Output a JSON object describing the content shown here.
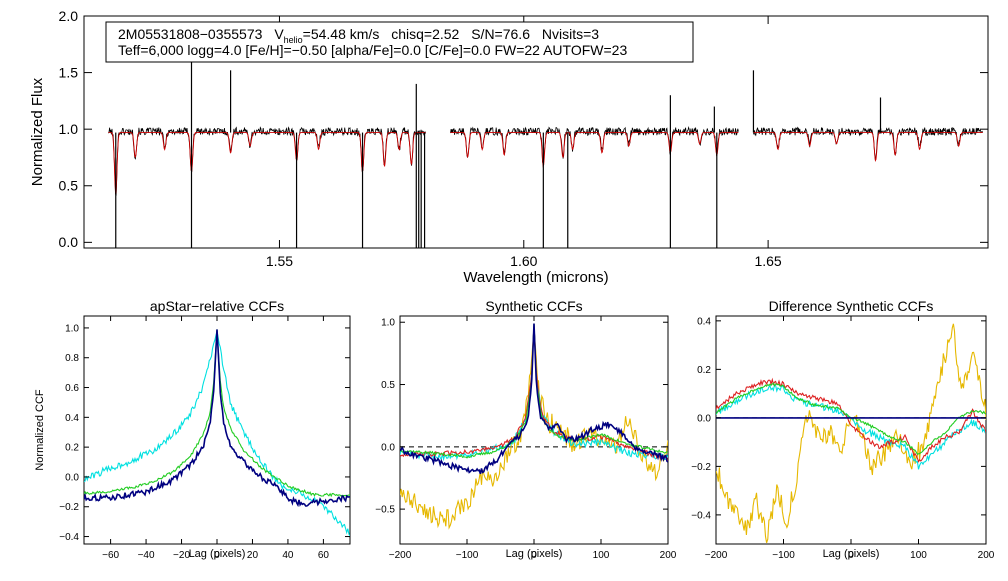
{
  "colors": {
    "observed": "#000000",
    "model": "#cc0000",
    "navy": "#000080",
    "green": "#22cc22",
    "cyan": "#00e0e0",
    "yellow": "#e6b800",
    "red": "#dd2222",
    "axis": "#000000"
  },
  "spectrum": {
    "star_id": "2M05531808−0355573",
    "vhelio_prefix": "V",
    "vhelio_sub": "helio",
    "vhelio_value": "=54.48 km/s",
    "chisq": "chisq=2.52",
    "snr": "S/N=76.6",
    "nvisits": "Nvisits=3",
    "params_line": "Teff=6,000 logg=4.0 [Fe/H]=−0.50 [alpha/Fe]=0.0 [C/Fe]=0.0 FW=22 AUTOFW=23"
  },
  "chart_data": [
    {
      "id": "spectrum",
      "type": "line",
      "title": "",
      "xlabel": "Wavelength (microns)",
      "ylabel": "Normalized Flux",
      "xlim": [
        1.51,
        1.695
      ],
      "ylim": [
        -0.05,
        2.0
      ],
      "xticks": [
        1.55,
        1.6,
        1.65
      ],
      "xtick_labels": [
        "1.55",
        "1.60",
        "1.65"
      ],
      "yticks": [
        0.0,
        0.5,
        1.0,
        1.5,
        2.0
      ],
      "ytick_labels": [
        "0.0",
        "0.5",
        "1.0",
        "1.5",
        "2.0"
      ],
      "chips": [
        [
          1.515,
          1.58
        ],
        [
          1.585,
          1.644
        ],
        [
          1.647,
          1.694
        ]
      ],
      "continuum": 0.97,
      "lines": [
        [
          1.5165,
          0.55
        ],
        [
          1.5205,
          0.22
        ],
        [
          1.5265,
          0.15
        ],
        [
          1.532,
          0.35
        ],
        [
          1.54,
          0.18
        ],
        [
          1.544,
          0.12
        ],
        [
          1.5535,
          0.25
        ],
        [
          1.558,
          0.15
        ],
        [
          1.567,
          0.35
        ],
        [
          1.5715,
          0.3
        ],
        [
          1.5745,
          0.15
        ],
        [
          1.577,
          0.28
        ],
        [
          1.5885,
          0.22
        ],
        [
          1.5915,
          0.15
        ],
        [
          1.596,
          0.2
        ],
        [
          1.604,
          0.3
        ],
        [
          1.608,
          0.22
        ],
        [
          1.61,
          0.15
        ],
        [
          1.616,
          0.18
        ],
        [
          1.6215,
          0.12
        ],
        [
          1.63,
          0.18
        ],
        [
          1.636,
          0.1
        ],
        [
          1.6395,
          0.2
        ],
        [
          1.652,
          0.15
        ],
        [
          1.6585,
          0.12
        ],
        [
          1.664,
          0.1
        ],
        [
          1.672,
          0.25
        ],
        [
          1.676,
          0.2
        ],
        [
          1.681,
          0.15
        ],
        [
          1.689,
          0.12
        ]
      ],
      "spikes_down": [
        1.5165,
        1.532,
        1.5535,
        1.567,
        1.578,
        1.5785,
        1.579,
        1.5797,
        1.604,
        1.609,
        1.63,
        1.6395
      ],
      "spikes_up": [
        [
          1.532,
          1.75
        ],
        [
          1.54,
          1.52
        ],
        [
          1.578,
          1.4
        ],
        [
          1.63,
          1.3
        ],
        [
          1.639,
          1.2
        ],
        [
          1.647,
          1.52
        ],
        [
          1.673,
          1.28
        ]
      ],
      "series": [
        {
          "name": "observed",
          "color": "observed"
        },
        {
          "name": "model",
          "color": "model"
        }
      ]
    },
    {
      "id": "ccf1",
      "type": "line",
      "title": "apStar−relative CCFs",
      "xlabel": "Lag (pixels)",
      "ylabel": "Normalized CCF",
      "xlim": [
        -75,
        75
      ],
      "ylim": [
        -0.45,
        1.08
      ],
      "xticks": [
        -60,
        -40,
        -20,
        0,
        20,
        40,
        60
      ],
      "xtick_labels": [
        "−60",
        "−40",
        "−20",
        "0",
        "20",
        "40",
        "60"
      ],
      "yticks": [
        -0.4,
        -0.2,
        0.0,
        0.2,
        0.4,
        0.6,
        0.8,
        1.0
      ],
      "ytick_labels": [
        "−0.4",
        "−0.2",
        "0.0",
        "0.2",
        "0.4",
        "0.6",
        "0.8",
        "1.0"
      ],
      "series": [
        {
          "name": "navy",
          "color": "navy",
          "x": [
            -75,
            -60,
            -40,
            -25,
            -15,
            -8,
            -4,
            -2,
            0,
            2,
            4,
            8,
            15,
            25,
            35,
            42,
            50,
            60,
            75
          ],
          "y": [
            -0.14,
            -0.14,
            -0.1,
            -0.02,
            0.08,
            0.2,
            0.35,
            0.55,
            0.99,
            0.55,
            0.35,
            0.2,
            0.1,
            0.0,
            -0.08,
            -0.16,
            -0.18,
            -0.16,
            -0.14
          ]
        },
        {
          "name": "green",
          "color": "green",
          "x": [
            -75,
            -60,
            -40,
            -25,
            -15,
            -8,
            -4,
            -2,
            0,
            2,
            4,
            8,
            15,
            25,
            40,
            55,
            75
          ],
          "y": [
            -0.11,
            -0.1,
            -0.05,
            0.03,
            0.14,
            0.28,
            0.42,
            0.62,
            0.99,
            0.62,
            0.45,
            0.32,
            0.18,
            0.06,
            -0.06,
            -0.12,
            -0.12
          ]
        },
        {
          "name": "cyan",
          "color": "cyan",
          "x": [
            -75,
            -62,
            -50,
            -35,
            -25,
            -15,
            -8,
            -4,
            0,
            4,
            8,
            15,
            25,
            35,
            45,
            55,
            65,
            75
          ],
          "y": [
            -0.02,
            0.05,
            0.1,
            0.18,
            0.28,
            0.42,
            0.6,
            0.78,
            0.98,
            0.7,
            0.48,
            0.3,
            0.1,
            -0.05,
            -0.1,
            -0.16,
            -0.25,
            -0.38
          ]
        }
      ]
    },
    {
      "id": "ccf2",
      "type": "line",
      "title": "Synthetic CCFs",
      "xlabel": "Lag (pixels)",
      "ylabel": "",
      "xlim": [
        -200,
        200
      ],
      "ylim": [
        -0.78,
        1.05
      ],
      "xticks": [
        -200,
        -100,
        0,
        100,
        200
      ],
      "xtick_labels": [
        "−200",
        "−100",
        "0",
        "100",
        "200"
      ],
      "yticks": [
        -0.5,
        0.0,
        0.5,
        1.0
      ],
      "ytick_labels": [
        "−0.5",
        "0.0",
        "0.5",
        "1.0"
      ],
      "zero_line": true,
      "series": [
        {
          "name": "navy",
          "color": "navy",
          "x": [
            -200,
            -170,
            -140,
            -110,
            -80,
            -55,
            -35,
            -20,
            -10,
            -4,
            0,
            4,
            10,
            20,
            35,
            50,
            70,
            90,
            110,
            130,
            150,
            175,
            200
          ],
          "y": [
            -0.02,
            -0.08,
            -0.12,
            -0.18,
            -0.2,
            -0.1,
            0.02,
            0.1,
            0.2,
            0.45,
            0.99,
            0.45,
            0.25,
            0.15,
            0.18,
            0.05,
            0.08,
            0.15,
            0.18,
            0.12,
            0.0,
            -0.05,
            -0.1
          ]
        },
        {
          "name": "green",
          "color": "green",
          "x": [
            -200,
            -150,
            -100,
            -60,
            -30,
            -12,
            -4,
            0,
            4,
            12,
            30,
            60,
            100,
            140,
            200
          ],
          "y": [
            -0.03,
            -0.05,
            -0.08,
            -0.04,
            0.04,
            0.2,
            0.5,
            0.99,
            0.5,
            0.22,
            0.1,
            0.05,
            0.1,
            0.02,
            -0.05
          ]
        },
        {
          "name": "cyan",
          "color": "cyan",
          "x": [
            -200,
            -150,
            -100,
            -60,
            -30,
            -12,
            -4,
            0,
            4,
            12,
            30,
            60,
            100,
            140,
            200
          ],
          "y": [
            -0.05,
            -0.08,
            -0.06,
            -0.02,
            0.05,
            0.22,
            0.52,
            0.99,
            0.52,
            0.25,
            0.12,
            0.02,
            0.04,
            -0.05,
            -0.08
          ]
        },
        {
          "name": "red",
          "color": "red",
          "x": [
            -200,
            -150,
            -100,
            -60,
            -30,
            -12,
            -4,
            0,
            4,
            12,
            30,
            60,
            100,
            140,
            200
          ],
          "y": [
            -0.06,
            -0.06,
            -0.04,
            -0.01,
            0.06,
            0.24,
            0.54,
            0.99,
            0.54,
            0.26,
            0.12,
            0.05,
            0.08,
            0.0,
            -0.1
          ]
        },
        {
          "name": "yellow",
          "color": "yellow",
          "x": [
            -200,
            -180,
            -160,
            -140,
            -120,
            -100,
            -80,
            -60,
            -40,
            -20,
            -8,
            0,
            8,
            20,
            40,
            60,
            80,
            100,
            120,
            140,
            160,
            180,
            200
          ],
          "y": [
            -0.35,
            -0.45,
            -0.5,
            -0.6,
            -0.55,
            -0.45,
            -0.25,
            -0.3,
            -0.05,
            0.1,
            0.4,
            0.95,
            0.4,
            0.2,
            0.15,
            0.0,
            0.1,
            0.05,
            0.0,
            0.2,
            -0.05,
            -0.2,
            0.0
          ]
        }
      ]
    },
    {
      "id": "ccf3",
      "type": "line",
      "title": "Difference Synthetic CCFs",
      "xlabel": "Lag (pixels)",
      "ylabel": "",
      "xlim": [
        -200,
        200
      ],
      "ylim": [
        -0.52,
        0.42
      ],
      "xticks": [
        -200,
        -100,
        0,
        100,
        200
      ],
      "xtick_labels": [
        "−200",
        "−100",
        "0",
        "100",
        "200"
      ],
      "yticks": [
        -0.4,
        -0.2,
        0.0,
        0.2,
        0.4
      ],
      "ytick_labels": [
        "−0.4",
        "−0.2",
        "0.0",
        "0.2",
        "0.4"
      ],
      "zero_line": true,
      "series": [
        {
          "name": "navy",
          "color": "navy",
          "x": [
            -200,
            200
          ],
          "y": [
            0.0,
            0.0
          ]
        },
        {
          "name": "green",
          "color": "green",
          "x": [
            -200,
            -170,
            -140,
            -120,
            -100,
            -80,
            -50,
            -20,
            0,
            20,
            40,
            60,
            80,
            100,
            120,
            140,
            160,
            180,
            200
          ],
          "y": [
            0.02,
            0.08,
            0.12,
            0.14,
            0.13,
            0.08,
            0.05,
            0.04,
            0.0,
            -0.02,
            -0.05,
            -0.08,
            -0.1,
            -0.15,
            -0.1,
            -0.06,
            0.0,
            0.03,
            0.02
          ]
        },
        {
          "name": "cyan",
          "color": "cyan",
          "x": [
            -200,
            -170,
            -140,
            -120,
            -100,
            -80,
            -50,
            -20,
            0,
            20,
            40,
            60,
            80,
            100,
            120,
            140,
            160,
            180,
            200
          ],
          "y": [
            0.02,
            0.07,
            0.11,
            0.13,
            0.12,
            0.07,
            0.05,
            0.03,
            0.0,
            -0.05,
            -0.08,
            -0.1,
            -0.12,
            -0.2,
            -0.15,
            -0.1,
            -0.05,
            -0.02,
            -0.05
          ]
        },
        {
          "name": "red",
          "color": "red",
          "x": [
            -200,
            -170,
            -140,
            -120,
            -100,
            -80,
            -50,
            -20,
            0,
            20,
            40,
            60,
            80,
            100,
            120,
            140,
            160,
            180,
            200
          ],
          "y": [
            0.04,
            0.1,
            0.14,
            0.15,
            0.14,
            0.1,
            0.08,
            0.06,
            -0.03,
            -0.08,
            -0.12,
            -0.1,
            -0.08,
            -0.18,
            -0.12,
            -0.08,
            -0.06,
            0.03,
            -0.06
          ]
        },
        {
          "name": "yellow",
          "color": "yellow",
          "x": [
            -200,
            -185,
            -170,
            -155,
            -140,
            -125,
            -110,
            -95,
            -80,
            -70,
            -60,
            -45,
            -30,
            -15,
            0,
            15,
            30,
            50,
            70,
            90,
            110,
            130,
            150,
            165,
            180,
            200
          ],
          "y": [
            -0.2,
            -0.32,
            -0.38,
            -0.45,
            -0.35,
            -0.48,
            -0.3,
            -0.42,
            -0.25,
            -0.05,
            0.02,
            -0.1,
            -0.05,
            -0.15,
            0.0,
            -0.05,
            -0.2,
            -0.15,
            -0.08,
            -0.18,
            -0.1,
            0.15,
            0.38,
            0.1,
            0.25,
            0.02
          ]
        }
      ]
    }
  ]
}
